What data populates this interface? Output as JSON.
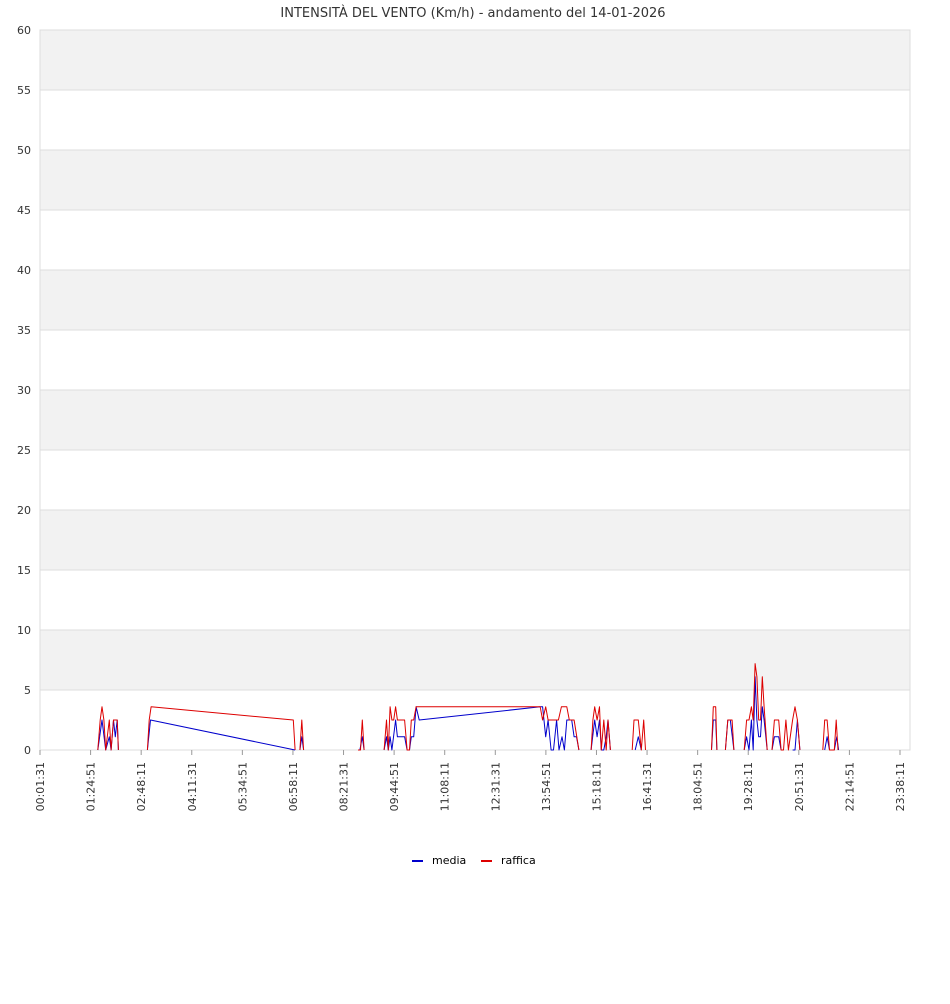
{
  "chart_data": {
    "type": "line",
    "title": "INTENSITÀ DEL VENTO (Km/h) - andamento del 14-01-2026",
    "xlabel": "",
    "ylabel": "",
    "ylim": [
      0,
      60
    ],
    "y_ticks": [
      "0",
      "5",
      "10",
      "15",
      "20",
      "25",
      "30",
      "35",
      "40",
      "45",
      "50",
      "55",
      "60"
    ],
    "x_ticks": [
      "00:01:31",
      "01:24:51",
      "02:48:11",
      "04:11:31",
      "05:34:51",
      "06:58:11",
      "08:21:31",
      "09:44:51",
      "11:08:11",
      "12:31:31",
      "13:54:51",
      "15:18:11",
      "16:41:31",
      "18:04:51",
      "19:28:11",
      "20:51:31",
      "22:14:51",
      "23:38:11"
    ],
    "x_unit": "minutes since 00:00",
    "xlim": [
      1.5,
      1439
    ],
    "grid": true,
    "banded_background": true,
    "legend_position": "bottom-center",
    "colors": {
      "media": "#0000cc",
      "raffica": "#dd0000",
      "band": "#f2f2f2",
      "grid": "#dddddd"
    },
    "series": [
      {
        "name": "media",
        "color": "#0000cc",
        "points": [
          [
            97,
            0
          ],
          [
            104,
            2.5
          ],
          [
            110,
            0
          ],
          [
            116,
            1.1
          ],
          [
            119,
            0
          ],
          [
            123,
            2.5
          ],
          [
            126,
            1.1
          ],
          [
            129,
            2.5
          ],
          [
            131,
            0
          ],
          [
            null,
            null
          ],
          [
            179,
            0
          ],
          [
            184,
            2.5
          ],
          [
            423,
            0
          ],
          [
            null,
            null
          ],
          [
            431,
            0
          ],
          [
            434,
            1.1
          ],
          [
            437,
            0
          ],
          [
            null,
            null
          ],
          [
            530,
            0
          ],
          [
            534,
            1.1
          ],
          [
            537,
            0
          ],
          [
            null,
            null
          ],
          [
            570,
            0
          ],
          [
            574,
            1.1
          ],
          [
            577,
            0
          ],
          [
            580,
            1.1
          ],
          [
            583,
            0
          ],
          [
            589,
            2.5
          ],
          [
            592,
            1.1
          ],
          [
            604,
            1.1
          ],
          [
            608,
            0
          ],
          [
            612,
            0
          ],
          [
            615,
            1.1
          ],
          [
            619,
            1.1
          ],
          [
            623,
            3.6
          ],
          [
            628,
            2.5
          ],
          [
            828,
            3.6
          ],
          [
            832,
            3.6
          ],
          [
            837,
            1.1
          ],
          [
            841,
            2.5
          ],
          [
            846,
            0
          ],
          [
            850,
            0
          ],
          [
            855,
            2.5
          ],
          [
            859,
            0
          ],
          [
            864,
            1.1
          ],
          [
            868,
            0
          ],
          [
            872,
            2.5
          ],
          [
            880,
            2.5
          ],
          [
            884,
            1.1
          ],
          [
            888,
            1.1
          ],
          [
            892,
            0
          ],
          [
            null,
            null
          ],
          [
            912,
            0
          ],
          [
            918,
            2.5
          ],
          [
            922,
            1.1
          ],
          [
            926,
            2.5
          ],
          [
            929,
            0
          ],
          [
            933,
            0
          ],
          [
            937,
            1.1
          ],
          [
            940,
            2.5
          ],
          [
            944,
            0
          ],
          [
            null,
            null
          ],
          [
            985,
            0
          ],
          [
            990,
            1.1
          ],
          [
            995,
            0
          ],
          [
            null,
            null
          ],
          [
            1111,
            0
          ],
          [
            1114,
            2.5
          ],
          [
            1118,
            2.5
          ],
          [
            1120,
            0
          ],
          [
            null,
            null
          ],
          [
            1134,
            0
          ],
          [
            1138,
            2.5
          ],
          [
            1142,
            2.5
          ],
          [
            1148,
            0
          ],
          [
            null,
            null
          ],
          [
            1165,
            0
          ],
          [
            1169,
            1.1
          ],
          [
            1173,
            0
          ],
          [
            1177,
            2.5
          ],
          [
            1180,
            0
          ],
          [
            1183,
            6.1
          ],
          [
            1186,
            2.5
          ],
          [
            1189,
            1.1
          ],
          [
            1192,
            1.1
          ],
          [
            1195,
            3.6
          ],
          [
            1198,
            2.5
          ],
          [
            1203,
            0
          ],
          [
            null,
            null
          ],
          [
            1211,
            0
          ],
          [
            1215,
            1.1
          ],
          [
            1222,
            1.1
          ],
          [
            1226,
            0
          ],
          [
            null,
            null
          ],
          [
            1245,
            0
          ],
          [
            1249,
            0
          ],
          [
            1253,
            2.5
          ],
          [
            1257,
            0
          ],
          [
            null,
            null
          ],
          [
            1298,
            0
          ],
          [
            1302,
            1.1
          ],
          [
            1306,
            0
          ],
          [
            null,
            null
          ],
          [
            1314,
            0
          ],
          [
            1318,
            1.1
          ],
          [
            1321,
            0
          ]
        ]
      },
      {
        "name": "raffica",
        "color": "#dd0000",
        "points": [
          [
            97,
            0
          ],
          [
            101,
            2.5
          ],
          [
            104,
            3.6
          ],
          [
            107,
            2.5
          ],
          [
            110,
            0
          ],
          [
            116,
            2.5
          ],
          [
            119,
            0
          ],
          [
            123,
            2.5
          ],
          [
            129,
            2.5
          ],
          [
            131,
            0
          ],
          [
            null,
            null
          ],
          [
            179,
            0
          ],
          [
            182,
            2.5
          ],
          [
            185,
            3.6
          ],
          [
            420,
            2.5
          ],
          [
            423,
            0
          ],
          [
            null,
            null
          ],
          [
            431,
            0
          ],
          [
            434,
            2.5
          ],
          [
            437,
            0
          ],
          [
            null,
            null
          ],
          [
            527,
            0
          ],
          [
            531,
            0
          ],
          [
            534,
            2.5
          ],
          [
            537,
            0
          ],
          [
            null,
            null
          ],
          [
            570,
            0
          ],
          [
            574,
            2.5
          ],
          [
            577,
            0
          ],
          [
            580,
            3.6
          ],
          [
            583,
            2.5
          ],
          [
            586,
            2.5
          ],
          [
            589,
            3.6
          ],
          [
            592,
            2.5
          ],
          [
            604,
            2.5
          ],
          [
            608,
            0
          ],
          [
            612,
            0
          ],
          [
            615,
            2.5
          ],
          [
            619,
            2.5
          ],
          [
            623,
            3.6
          ],
          [
            828,
            3.6
          ],
          [
            832,
            2.5
          ],
          [
            837,
            3.6
          ],
          [
            841,
            2.5
          ],
          [
            858,
            2.5
          ],
          [
            863,
            3.6
          ],
          [
            872,
            3.6
          ],
          [
            876,
            2.5
          ],
          [
            884,
            2.5
          ],
          [
            892,
            0
          ],
          [
            null,
            null
          ],
          [
            912,
            0
          ],
          [
            915,
            2.5
          ],
          [
            918,
            3.6
          ],
          [
            922,
            2.5
          ],
          [
            926,
            3.6
          ],
          [
            929,
            0
          ],
          [
            933,
            2.5
          ],
          [
            937,
            0
          ],
          [
            940,
            2.5
          ],
          [
            944,
            0
          ],
          [
            null,
            null
          ],
          [
            980,
            0
          ],
          [
            983,
            2.5
          ],
          [
            990,
            2.5
          ],
          [
            995,
            0
          ],
          [
            999,
            2.5
          ],
          [
            1002,
            0
          ],
          [
            null,
            null
          ],
          [
            1111,
            0
          ],
          [
            1114,
            3.6
          ],
          [
            1118,
            3.6
          ],
          [
            1120,
            0
          ],
          [
            null,
            null
          ],
          [
            1134,
            0
          ],
          [
            1138,
            2.5
          ],
          [
            1145,
            2.5
          ],
          [
            1148,
            0
          ],
          [
            null,
            null
          ],
          [
            1165,
            0
          ],
          [
            1169,
            2.5
          ],
          [
            1173,
            2.5
          ],
          [
            1177,
            3.6
          ],
          [
            1180,
            2.5
          ],
          [
            1183,
            7.2
          ],
          [
            1186,
            6.1
          ],
          [
            1189,
            2.5
          ],
          [
            1192,
            2.5
          ],
          [
            1195,
            6.1
          ],
          [
            1198,
            3.6
          ],
          [
            1203,
            0
          ],
          [
            null,
            null
          ],
          [
            1211,
            0
          ],
          [
            1215,
            2.5
          ],
          [
            1222,
            2.5
          ],
          [
            1226,
            0
          ],
          [
            1230,
            0
          ],
          [
            1234,
            2.5
          ],
          [
            1238,
            0
          ],
          [
            1245,
            2.5
          ],
          [
            1249,
            3.6
          ],
          [
            1253,
            2.5
          ],
          [
            1257,
            0
          ],
          [
            null,
            null
          ],
          [
            1295,
            0
          ],
          [
            1298,
            2.5
          ],
          [
            1302,
            2.5
          ],
          [
            1306,
            0
          ],
          [
            1314,
            0
          ],
          [
            1317,
            2.5
          ],
          [
            1320,
            0
          ]
        ]
      }
    ]
  }
}
